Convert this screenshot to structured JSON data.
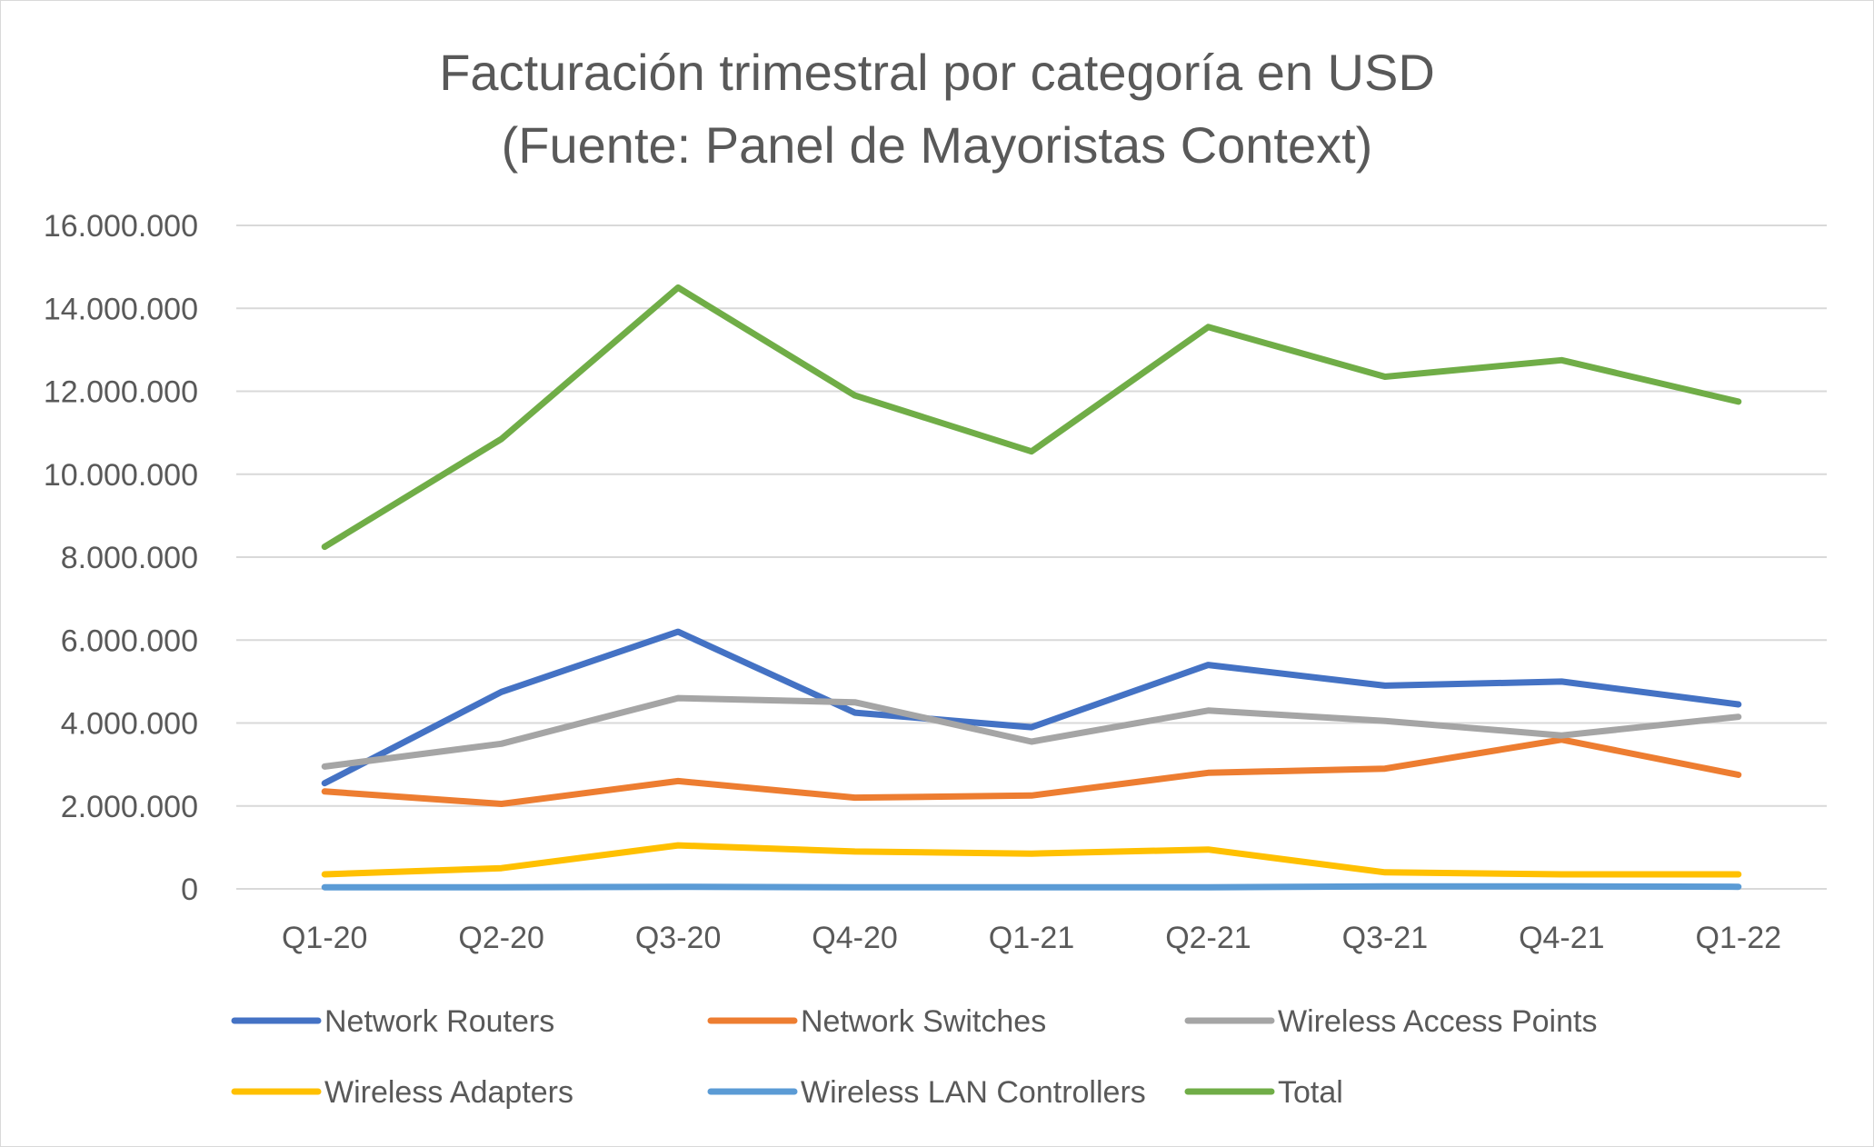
{
  "chart_data": {
    "type": "line",
    "title_lines": [
      "Facturación trimestral por categoría en USD",
      "(Fuente: Panel de Mayoristas Context)"
    ],
    "categories": [
      "Q1-20",
      "Q2-20",
      "Q3-20",
      "Q4-20",
      "Q1-21",
      "Q2-21",
      "Q3-21",
      "Q4-21",
      "Q1-22"
    ],
    "ylim": [
      0,
      16000000
    ],
    "y_ticks": [
      0,
      2000000,
      4000000,
      6000000,
      8000000,
      10000000,
      12000000,
      14000000,
      16000000
    ],
    "y_tick_labels": [
      "0",
      "2.000.000",
      "4.000.000",
      "6.000.000",
      "8.000.000",
      "10.000.000",
      "12.000.000",
      "14.000.000",
      "16.000.000"
    ],
    "grid": true,
    "legend_position": "bottom",
    "series": [
      {
        "name": "Network Routers",
        "color": "#4472C4",
        "values": [
          2550000,
          4750000,
          6200000,
          4250000,
          3900000,
          5400000,
          4900000,
          5000000,
          4450000
        ]
      },
      {
        "name": "Network Switches",
        "color": "#ED7D31",
        "values": [
          2350000,
          2050000,
          2600000,
          2200000,
          2250000,
          2800000,
          2900000,
          3600000,
          2750000
        ]
      },
      {
        "name": "Wireless Access Points",
        "color": "#A5A5A5",
        "values": [
          2950000,
          3500000,
          4600000,
          4500000,
          3550000,
          4300000,
          4050000,
          3700000,
          4150000
        ]
      },
      {
        "name": "Wireless Adapters",
        "color": "#FFC000",
        "values": [
          350000,
          500000,
          1050000,
          900000,
          850000,
          950000,
          400000,
          350000,
          350000
        ]
      },
      {
        "name": "Wireless LAN Controllers",
        "color": "#5B9BD5",
        "values": [
          40000,
          40000,
          50000,
          40000,
          40000,
          40000,
          60000,
          60000,
          50000
        ]
      },
      {
        "name": "Total",
        "color": "#70AD47",
        "values": [
          8250000,
          10850000,
          14500000,
          11900000,
          10550000,
          13550000,
          12350000,
          12750000,
          11750000
        ]
      }
    ]
  }
}
